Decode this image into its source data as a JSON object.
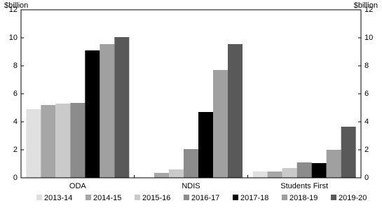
{
  "chart_data": {
    "type": "bar",
    "ylabel": "$billion",
    "y2label": "$billion",
    "categories": [
      "ODA",
      "NDIS",
      "Students First"
    ],
    "series": [
      {
        "name": "2013-14",
        "color": "#e0e0e0",
        "values": [
          4.9,
          0,
          0.45
        ]
      },
      {
        "name": "2014-15",
        "color": "#a6a6a6",
        "values": [
          5.2,
          0.35,
          0.45
        ]
      },
      {
        "name": "2015-16",
        "color": "#cacaca",
        "values": [
          5.3,
          0.6,
          0.7
        ]
      },
      {
        "name": "2016-17",
        "color": "#8c8c8c",
        "values": [
          5.35,
          2.05,
          1.1
        ]
      },
      {
        "name": "2017-18",
        "color": "#000000",
        "values": [
          9.1,
          4.7,
          1.05
        ]
      },
      {
        "name": "2018-19",
        "color": "#a0a0a0",
        "values": [
          9.55,
          7.7,
          2.0
        ]
      },
      {
        "name": "2019-20",
        "color": "#595959",
        "values": [
          10.05,
          9.55,
          3.65
        ]
      }
    ],
    "ylim": [
      0,
      12
    ],
    "yticks": [
      0,
      2,
      4,
      6,
      8,
      10,
      12
    ],
    "y2lim": [
      0,
      12
    ],
    "y2ticks": [
      0,
      2,
      4,
      6,
      8,
      10,
      12
    ]
  }
}
